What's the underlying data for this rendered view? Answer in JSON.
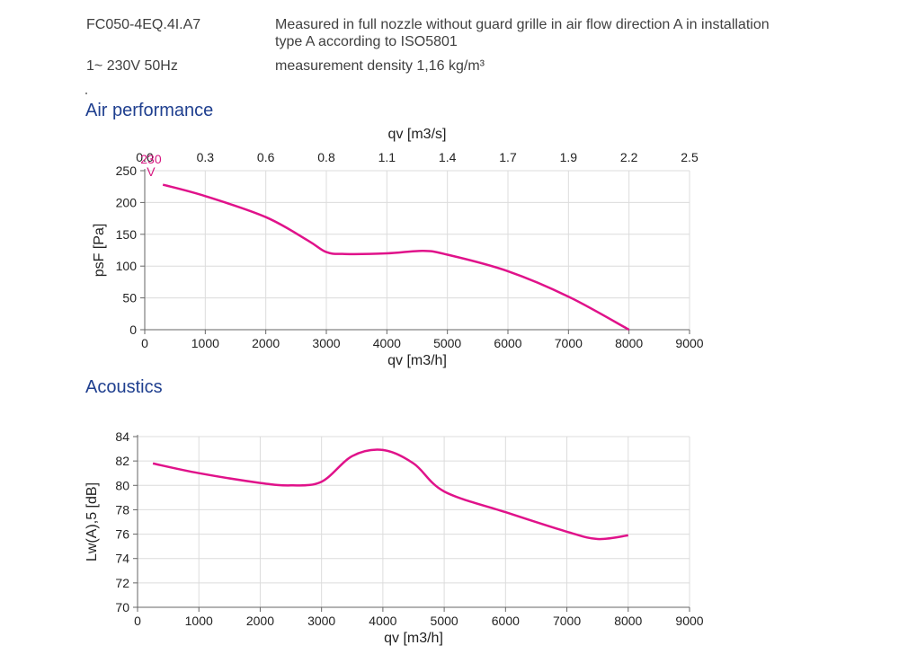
{
  "header": {
    "model": "FC050-4EQ.4I.A7",
    "supply": "1~ 230V 50Hz",
    "description_line1": "Measured in full nozzle without guard grille in air flow direction A in installation",
    "description_line2": "type A according to ISO5801",
    "density": "measurement density 1,16 kg/m³"
  },
  "sections": {
    "air_title": "Air performance",
    "acoustics_title": "Acoustics"
  },
  "colors": {
    "curve": "#e0128a",
    "title": "#1f3f8f",
    "grid": "#dcdcdc"
  },
  "chart_data": [
    {
      "type": "line",
      "title": "Air performance",
      "xlabel": "qv [m3/h]",
      "ylabel": "psF [Pa]",
      "x2label": "qv [m3/s]",
      "xlim": [
        0,
        9000
      ],
      "ylim": [
        0,
        250
      ],
      "x_ticks": [
        0,
        1000,
        2000,
        3000,
        4000,
        5000,
        6000,
        7000,
        8000,
        9000
      ],
      "y_ticks": [
        0,
        50,
        100,
        150,
        200,
        250
      ],
      "x2_ticks": [
        "0.0",
        "0.3",
        "0.6",
        "0.8",
        "1.1",
        "1.4",
        "1.7",
        "1.9",
        "2.2",
        "2.5"
      ],
      "grid": true,
      "annotation": {
        "label": "230",
        "sublabel": "V",
        "x": 400
      },
      "series": [
        {
          "x": [
            300,
            1000,
            2000,
            2700,
            3000,
            3300,
            4000,
            4600,
            5000,
            6000,
            7000,
            8000
          ],
          "values": [
            228,
            210,
            177,
            140,
            122,
            119,
            120,
            124,
            118,
            92,
            52,
            0
          ]
        }
      ]
    },
    {
      "type": "line",
      "title": "Acoustics",
      "xlabel": "qv [m3/h]",
      "ylabel": "Lw(A),5 [dB]",
      "xlim": [
        0,
        9000
      ],
      "ylim": [
        70,
        84
      ],
      "x_ticks": [
        0,
        1000,
        2000,
        3000,
        4000,
        5000,
        6000,
        7000,
        8000,
        9000
      ],
      "y_ticks": [
        70,
        72,
        74,
        76,
        78,
        80,
        82,
        84
      ],
      "grid": true,
      "series": [
        {
          "x": [
            250,
            1000,
            2000,
            2500,
            3000,
            3500,
            4000,
            4500,
            5000,
            6000,
            7000,
            7500,
            8000
          ],
          "values": [
            81.8,
            81.0,
            80.2,
            80.0,
            80.3,
            82.4,
            82.9,
            81.8,
            79.5,
            77.8,
            76.2,
            75.6,
            75.9
          ]
        }
      ]
    }
  ]
}
